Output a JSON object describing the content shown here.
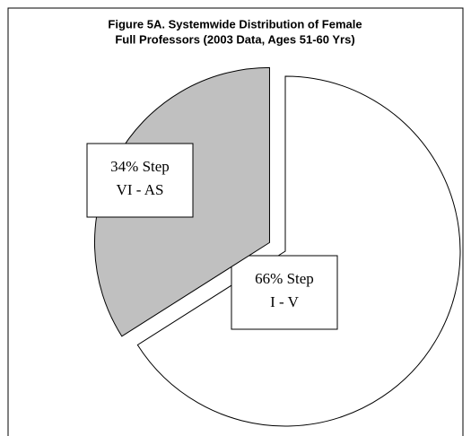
{
  "chart_data": {
    "type": "pie",
    "title": [
      "Figure 5A.  Systemwide Distribution of Female",
      "Full Professors (2003 Data, Ages 51-60 Yrs)"
    ],
    "categories": [
      "I - V",
      "VI - AS"
    ],
    "values": [
      66,
      34
    ],
    "value_labels": [
      "66% Step",
      "34% Step"
    ],
    "colors": [
      "#ffffff",
      "#c0c0c0"
    ],
    "exploded": [
      false,
      true
    ]
  }
}
